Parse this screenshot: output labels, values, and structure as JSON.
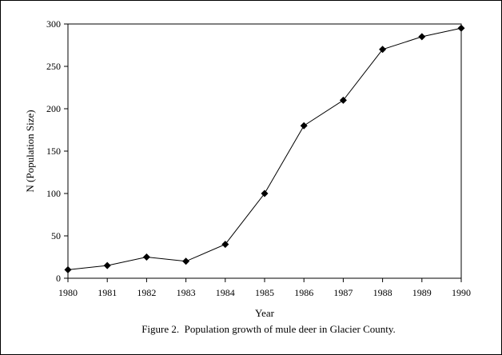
{
  "chart_data": {
    "type": "line",
    "title": "",
    "caption": "Figure 2.  Population growth of mule deer in Glacier County.",
    "xlabel": "Year",
    "ylabel": "N (Population Size)",
    "x": [
      1980,
      1981,
      1982,
      1983,
      1984,
      1985,
      1986,
      1987,
      1988,
      1989,
      1990
    ],
    "xlim": [
      1980,
      1990
    ],
    "ylim": [
      0,
      300
    ],
    "y_ticks": [
      0,
      50,
      100,
      150,
      200,
      250,
      300
    ],
    "series": [
      {
        "values": [
          10,
          15,
          25,
          20,
          40,
          100,
          180,
          210,
          270,
          285,
          295
        ]
      }
    ],
    "grid": false,
    "legend": "none",
    "marker": "diamond",
    "colors": {
      "line": "#000000",
      "marker": "#000000",
      "axis": "#000000"
    }
  }
}
